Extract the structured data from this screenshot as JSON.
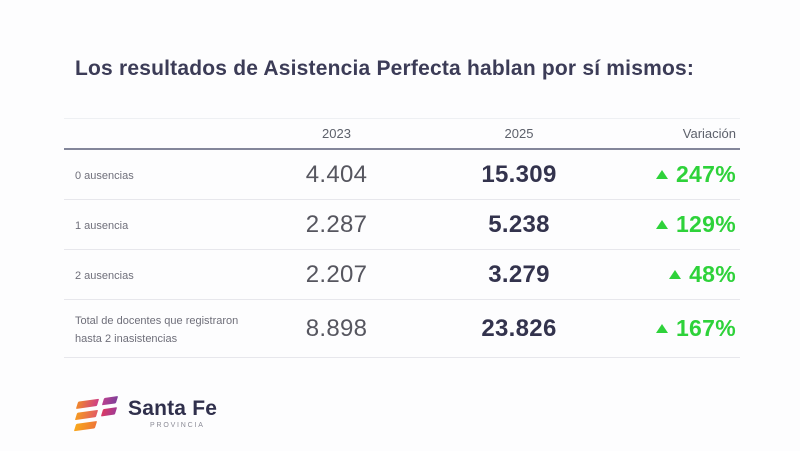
{
  "title": "Los resultados de Asistencia Perfecta hablan por sí mismos:",
  "table": {
    "columns": [
      "",
      "2023",
      "2025",
      "Variación"
    ],
    "rows": [
      {
        "label": "0 ausencias",
        "y2023": "4.404",
        "y2025": "15.309",
        "variation": "247%"
      },
      {
        "label": "1 ausencia",
        "y2023": "2.287",
        "y2025": "5.238",
        "variation": "129%"
      },
      {
        "label": "2 ausencias",
        "y2023": "2.207",
        "y2025": "3.279",
        "variation": "48%"
      },
      {
        "label": "Total de docentes que registraron hasta 2 inasistencias",
        "y2023": "8.898",
        "y2025": "23.826",
        "variation": "167%"
      }
    ]
  },
  "chart_data": {
    "type": "table",
    "title": "Los resultados de Asistencia Perfecta hablan por sí mismos:",
    "columns": [
      "",
      "2023",
      "2025",
      "Variación"
    ],
    "rows": [
      [
        "0 ausencias",
        4404,
        15309,
        "+247%"
      ],
      [
        "1 ausencia",
        2287,
        5238,
        "+129%"
      ],
      [
        "2 ausencias",
        2207,
        3279,
        "+48%"
      ],
      [
        "Total de docentes que registraron hasta 2 inasistencias",
        8898,
        23826,
        "+167%"
      ]
    ],
    "notes": "Numbers use Spanish thousands separator (.). Variación shown with green up-triangle."
  },
  "icons": {
    "variation_arrow": "up-triangle-icon",
    "logo_mark": "santa-fe-stripes-icon"
  },
  "logo": {
    "name": "Santa Fe",
    "subtitle": "PROVINCIA"
  },
  "colors": {
    "accent_green": "#2ed23a",
    "title_navy": "#3c3c57",
    "value_bold_navy": "#33334d",
    "value_gray": "#56565f",
    "brand_orange": "#f8a81c",
    "brand_magenta": "#cf3f85",
    "brand_purple": "#7f3f99",
    "background": "#fdfdfe"
  }
}
